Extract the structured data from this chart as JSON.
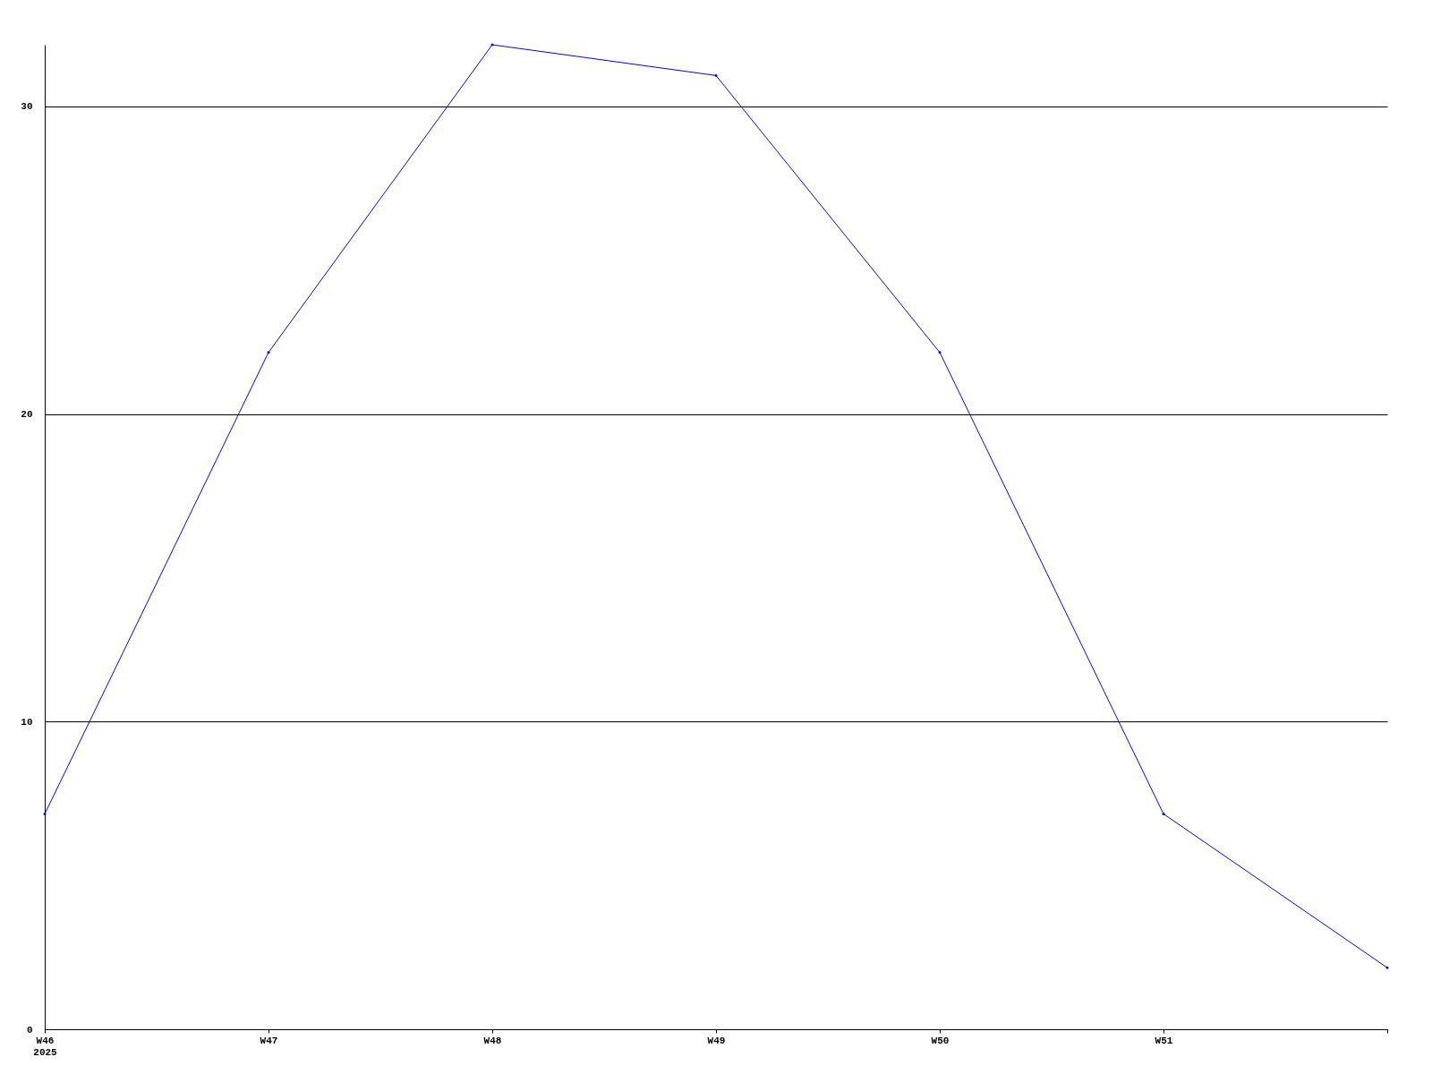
{
  "chart_data": {
    "type": "line",
    "categories": [
      "W46\n2025",
      "W47",
      "W48",
      "W49",
      "W50",
      "W51",
      null
    ],
    "series": [
      {
        "color": "#0000ff",
        "values": [
          7,
          22,
          32,
          31,
          22,
          7,
          2
        ]
      }
    ],
    "ylim": [
      0,
      32
    ],
    "yticks": [
      0,
      10,
      20,
      30
    ],
    "grid": "y",
    "marker": "diamond",
    "line_style": "solid"
  }
}
